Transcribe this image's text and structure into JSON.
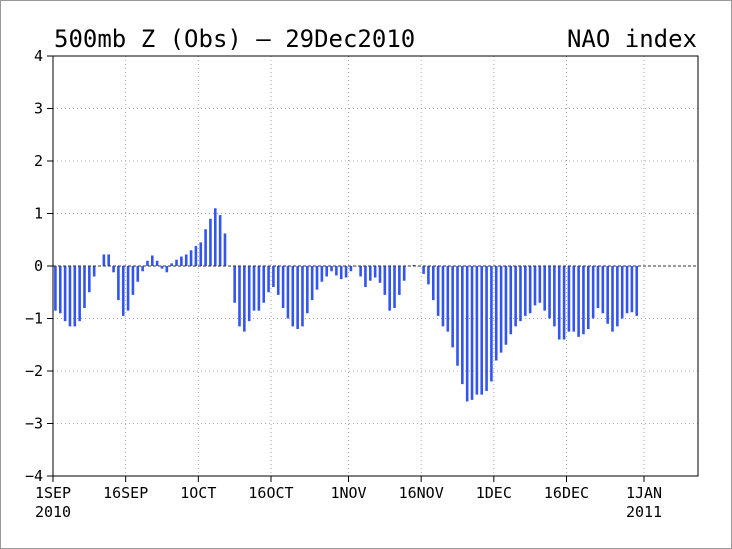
{
  "chart_data": {
    "type": "bar",
    "title": "500mb Z (Obs) — 29Dec2010",
    "title_right": "NAO index",
    "ylim": [
      -4,
      4
    ],
    "yticks": [
      4,
      3,
      2,
      1,
      0,
      -1,
      -2,
      -3,
      -4
    ],
    "xlim_days": [
      0,
      121
    ],
    "xticks": [
      {
        "day": 0,
        "label": "1SEP",
        "sub": "2010"
      },
      {
        "day": 15,
        "label": "16SEP",
        "sub": ""
      },
      {
        "day": 30,
        "label": "1OCT",
        "sub": ""
      },
      {
        "day": 45,
        "label": "16OCT",
        "sub": ""
      },
      {
        "day": 61,
        "label": "1NOV",
        "sub": ""
      },
      {
        "day": 76,
        "label": "16NOV",
        "sub": ""
      },
      {
        "day": 91,
        "label": "1DEC",
        "sub": ""
      },
      {
        "day": 106,
        "label": "16DEC",
        "sub": ""
      },
      {
        "day": 122,
        "label": "1JAN",
        "sub": "2011"
      }
    ],
    "grid": true,
    "bar_color": "#3355ee",
    "start_date": "2010-09-01",
    "values": [
      -0.85,
      -0.9,
      -1.05,
      -1.15,
      -1.15,
      -1.05,
      -0.8,
      -0.5,
      -0.2,
      0.0,
      0.22,
      0.22,
      -0.12,
      -0.65,
      -0.95,
      -0.85,
      -0.55,
      -0.3,
      -0.1,
      0.1,
      0.2,
      0.1,
      -0.05,
      -0.12,
      0.05,
      0.12,
      0.18,
      0.22,
      0.3,
      0.38,
      0.45,
      0.7,
      0.9,
      1.1,
      0.97,
      0.62,
      0.0,
      -0.7,
      -1.15,
      -1.25,
      -1.05,
      -0.85,
      -0.85,
      -0.7,
      -0.5,
      -0.4,
      -0.55,
      -0.8,
      -1.0,
      -1.15,
      -1.2,
      -1.15,
      -0.9,
      -0.65,
      -0.45,
      -0.3,
      -0.2,
      -0.1,
      -0.18,
      -0.25,
      -0.22,
      -0.1,
      0.0,
      -0.2,
      -0.4,
      -0.28,
      -0.22,
      -0.32,
      -0.55,
      -0.85,
      -0.8,
      -0.55,
      -0.28,
      0.0,
      0.02,
      0.0,
      -0.15,
      -0.35,
      -0.65,
      -0.95,
      -1.15,
      -1.25,
      -1.55,
      -1.9,
      -2.25,
      -2.58,
      -2.55,
      -2.45,
      -2.45,
      -2.38,
      -2.2,
      -1.8,
      -1.65,
      -1.5,
      -1.3,
      -1.15,
      -1.05,
      -0.95,
      -0.9,
      -0.75,
      -0.7,
      -0.85,
      -1.0,
      -1.15,
      -1.4,
      -1.4,
      -1.25,
      -1.25,
      -1.35,
      -1.3,
      -1.2,
      -1.0,
      -0.8,
      -0.9,
      -1.1,
      -1.25,
      -1.15,
      -1.0,
      -0.9,
      -0.88,
      -0.95
    ]
  }
}
